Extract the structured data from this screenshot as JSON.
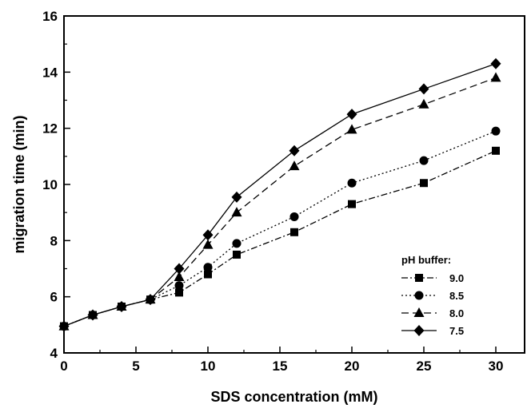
{
  "chart_data": {
    "type": "line",
    "title": "",
    "xlabel": "SDS concentration (mM)",
    "ylabel": "migration time (min)",
    "xlim": [
      0,
      32
    ],
    "ylim": [
      4,
      16
    ],
    "xticks": [
      "0",
      "5",
      "10",
      "15",
      "20",
      "25",
      "30"
    ],
    "yticks": [
      "4",
      "6",
      "8",
      "10",
      "12",
      "14",
      "16"
    ],
    "grid": false,
    "legend": {
      "title": "pH buffer:",
      "placement": "right"
    },
    "series": [
      {
        "name": "9.0",
        "marker": "square",
        "line_style": "dash-dot",
        "x": [
          0,
          2,
          4,
          6,
          8,
          10,
          12,
          16,
          20,
          25,
          30
        ],
        "y": [
          4.95,
          5.35,
          5.65,
          5.9,
          6.15,
          6.8,
          7.5,
          8.3,
          9.3,
          10.05,
          11.2
        ]
      },
      {
        "name": "8.5",
        "marker": "circle",
        "line_style": "dotted",
        "x": [
          0,
          2,
          4,
          6,
          8,
          10,
          12,
          16,
          20,
          25,
          30
        ],
        "y": [
          4.95,
          5.35,
          5.65,
          5.9,
          6.4,
          7.05,
          7.9,
          8.85,
          10.05,
          10.85,
          11.9
        ]
      },
      {
        "name": "8.0",
        "marker": "triangle",
        "line_style": "dashed",
        "x": [
          0,
          2,
          4,
          6,
          8,
          10,
          12,
          16,
          20,
          25,
          30
        ],
        "y": [
          4.95,
          5.35,
          5.65,
          5.9,
          6.7,
          7.85,
          9.0,
          10.65,
          11.95,
          12.85,
          13.8
        ]
      },
      {
        "name": "7.5",
        "marker": "diamond",
        "line_style": "solid",
        "x": [
          0,
          2,
          4,
          6,
          8,
          10,
          12,
          16,
          20,
          25,
          30
        ],
        "y": [
          4.95,
          5.35,
          5.65,
          5.9,
          7.0,
          8.2,
          9.55,
          11.2,
          12.5,
          13.4,
          14.3
        ]
      }
    ]
  }
}
